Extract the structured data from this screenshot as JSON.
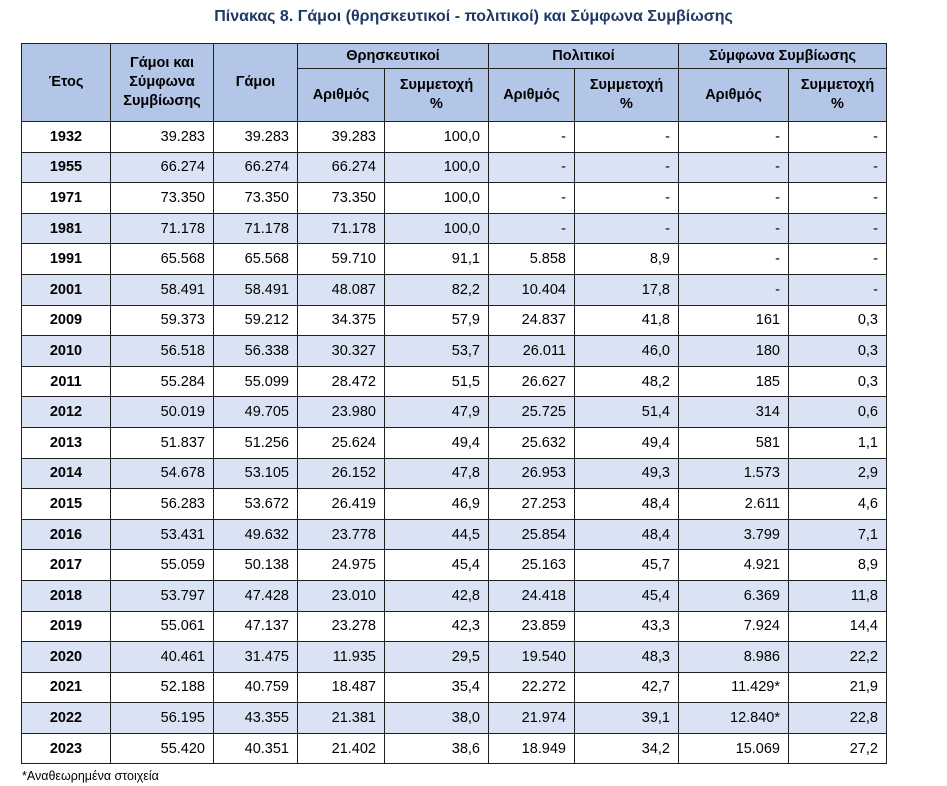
{
  "title": "Πίνακας 8. Γάμοι (θρησκευτικοί - πολιτικοί) και Σύμφωνα Συμβίωσης",
  "headers": {
    "year": "Έτος",
    "total": "Γάμοι και Σύμφωνα Συμβίωσης",
    "marriages": "Γάμοι",
    "religious": "Θρησκευτικοί",
    "civil": "Πολιτικοί",
    "partnerships": "Σύμφωνα Συμβίωσης",
    "number": "Αριθμός",
    "share": "Συμμετοχή %"
  },
  "rows": [
    {
      "year": "1932",
      "total": "39.283",
      "marriages": "39.283",
      "rel_n": "39.283",
      "rel_p": "100,0",
      "civ_n": "-",
      "civ_p": "-",
      "cp_n": "-",
      "cp_p": "-"
    },
    {
      "year": "1955",
      "total": "66.274",
      "marriages": "66.274",
      "rel_n": "66.274",
      "rel_p": "100,0",
      "civ_n": "-",
      "civ_p": "-",
      "cp_n": "-",
      "cp_p": "-"
    },
    {
      "year": "1971",
      "total": "73.350",
      "marriages": "73.350",
      "rel_n": "73.350",
      "rel_p": "100,0",
      "civ_n": "-",
      "civ_p": "-",
      "cp_n": "-",
      "cp_p": "-"
    },
    {
      "year": "1981",
      "total": "71.178",
      "marriages": "71.178",
      "rel_n": "71.178",
      "rel_p": "100,0",
      "civ_n": "-",
      "civ_p": "-",
      "cp_n": "-",
      "cp_p": "-"
    },
    {
      "year": "1991",
      "total": "65.568",
      "marriages": "65.568",
      "rel_n": "59.710",
      "rel_p": "91,1",
      "civ_n": "5.858",
      "civ_p": "8,9",
      "cp_n": "-",
      "cp_p": "-"
    },
    {
      "year": "2001",
      "total": "58.491",
      "marriages": "58.491",
      "rel_n": "48.087",
      "rel_p": "82,2",
      "civ_n": "10.404",
      "civ_p": "17,8",
      "cp_n": "-",
      "cp_p": "-"
    },
    {
      "year": "2009",
      "total": "59.373",
      "marriages": "59.212",
      "rel_n": "34.375",
      "rel_p": "57,9",
      "civ_n": "24.837",
      "civ_p": "41,8",
      "cp_n": "161",
      "cp_p": "0,3"
    },
    {
      "year": "2010",
      "total": "56.518",
      "marriages": "56.338",
      "rel_n": "30.327",
      "rel_p": "53,7",
      "civ_n": "26.011",
      "civ_p": "46,0",
      "cp_n": "180",
      "cp_p": "0,3"
    },
    {
      "year": "2011",
      "total": "55.284",
      "marriages": "55.099",
      "rel_n": "28.472",
      "rel_p": "51,5",
      "civ_n": "26.627",
      "civ_p": "48,2",
      "cp_n": "185",
      "cp_p": "0,3"
    },
    {
      "year": "2012",
      "total": "50.019",
      "marriages": "49.705",
      "rel_n": "23.980",
      "rel_p": "47,9",
      "civ_n": "25.725",
      "civ_p": "51,4",
      "cp_n": "314",
      "cp_p": "0,6"
    },
    {
      "year": "2013",
      "total": "51.837",
      "marriages": "51.256",
      "rel_n": "25.624",
      "rel_p": "49,4",
      "civ_n": "25.632",
      "civ_p": "49,4",
      "cp_n": "581",
      "cp_p": "1,1"
    },
    {
      "year": "2014",
      "total": "54.678",
      "marriages": "53.105",
      "rel_n": "26.152",
      "rel_p": "47,8",
      "civ_n": "26.953",
      "civ_p": "49,3",
      "cp_n": "1.573",
      "cp_p": "2,9"
    },
    {
      "year": "2015",
      "total": "56.283",
      "marriages": "53.672",
      "rel_n": "26.419",
      "rel_p": "46,9",
      "civ_n": "27.253",
      "civ_p": "48,4",
      "cp_n": "2.611",
      "cp_p": "4,6"
    },
    {
      "year": "2016",
      "total": "53.431",
      "marriages": "49.632",
      "rel_n": "23.778",
      "rel_p": "44,5",
      "civ_n": "25.854",
      "civ_p": "48,4",
      "cp_n": "3.799",
      "cp_p": "7,1"
    },
    {
      "year": "2017",
      "total": "55.059",
      "marriages": "50.138",
      "rel_n": "24.975",
      "rel_p": "45,4",
      "civ_n": "25.163",
      "civ_p": "45,7",
      "cp_n": "4.921",
      "cp_p": "8,9"
    },
    {
      "year": "2018",
      "total": "53.797",
      "marriages": "47.428",
      "rel_n": "23.010",
      "rel_p": "42,8",
      "civ_n": "24.418",
      "civ_p": "45,4",
      "cp_n": "6.369",
      "cp_p": "11,8"
    },
    {
      "year": "2019",
      "total": "55.061",
      "marriages": "47.137",
      "rel_n": "23.278",
      "rel_p": "42,3",
      "civ_n": "23.859",
      "civ_p": "43,3",
      "cp_n": "7.924",
      "cp_p": "14,4"
    },
    {
      "year": "2020",
      "total": "40.461",
      "marriages": "31.475",
      "rel_n": "11.935",
      "rel_p": "29,5",
      "civ_n": "19.540",
      "civ_p": "48,3",
      "cp_n": "8.986",
      "cp_p": "22,2"
    },
    {
      "year": "2021",
      "total": "52.188",
      "marriages": "40.759",
      "rel_n": "18.487",
      "rel_p": "35,4",
      "civ_n": "22.272",
      "civ_p": "42,7",
      "cp_n": "11.429*",
      "cp_p": "21,9"
    },
    {
      "year": "2022",
      "total": "56.195",
      "marriages": "43.355",
      "rel_n": "21.381",
      "rel_p": "38,0",
      "civ_n": "21.974",
      "civ_p": "39,1",
      "cp_n": "12.840*",
      "cp_p": "22,8"
    },
    {
      "year": "2023",
      "total": "55.420",
      "marriages": "40.351",
      "rel_n": "21.402",
      "rel_p": "38,6",
      "civ_n": "18.949",
      "civ_p": "34,2",
      "cp_n": "15.069",
      "cp_p": "27,2"
    }
  ],
  "footnote": "*Αναθεωρημένα στοιχεία"
}
